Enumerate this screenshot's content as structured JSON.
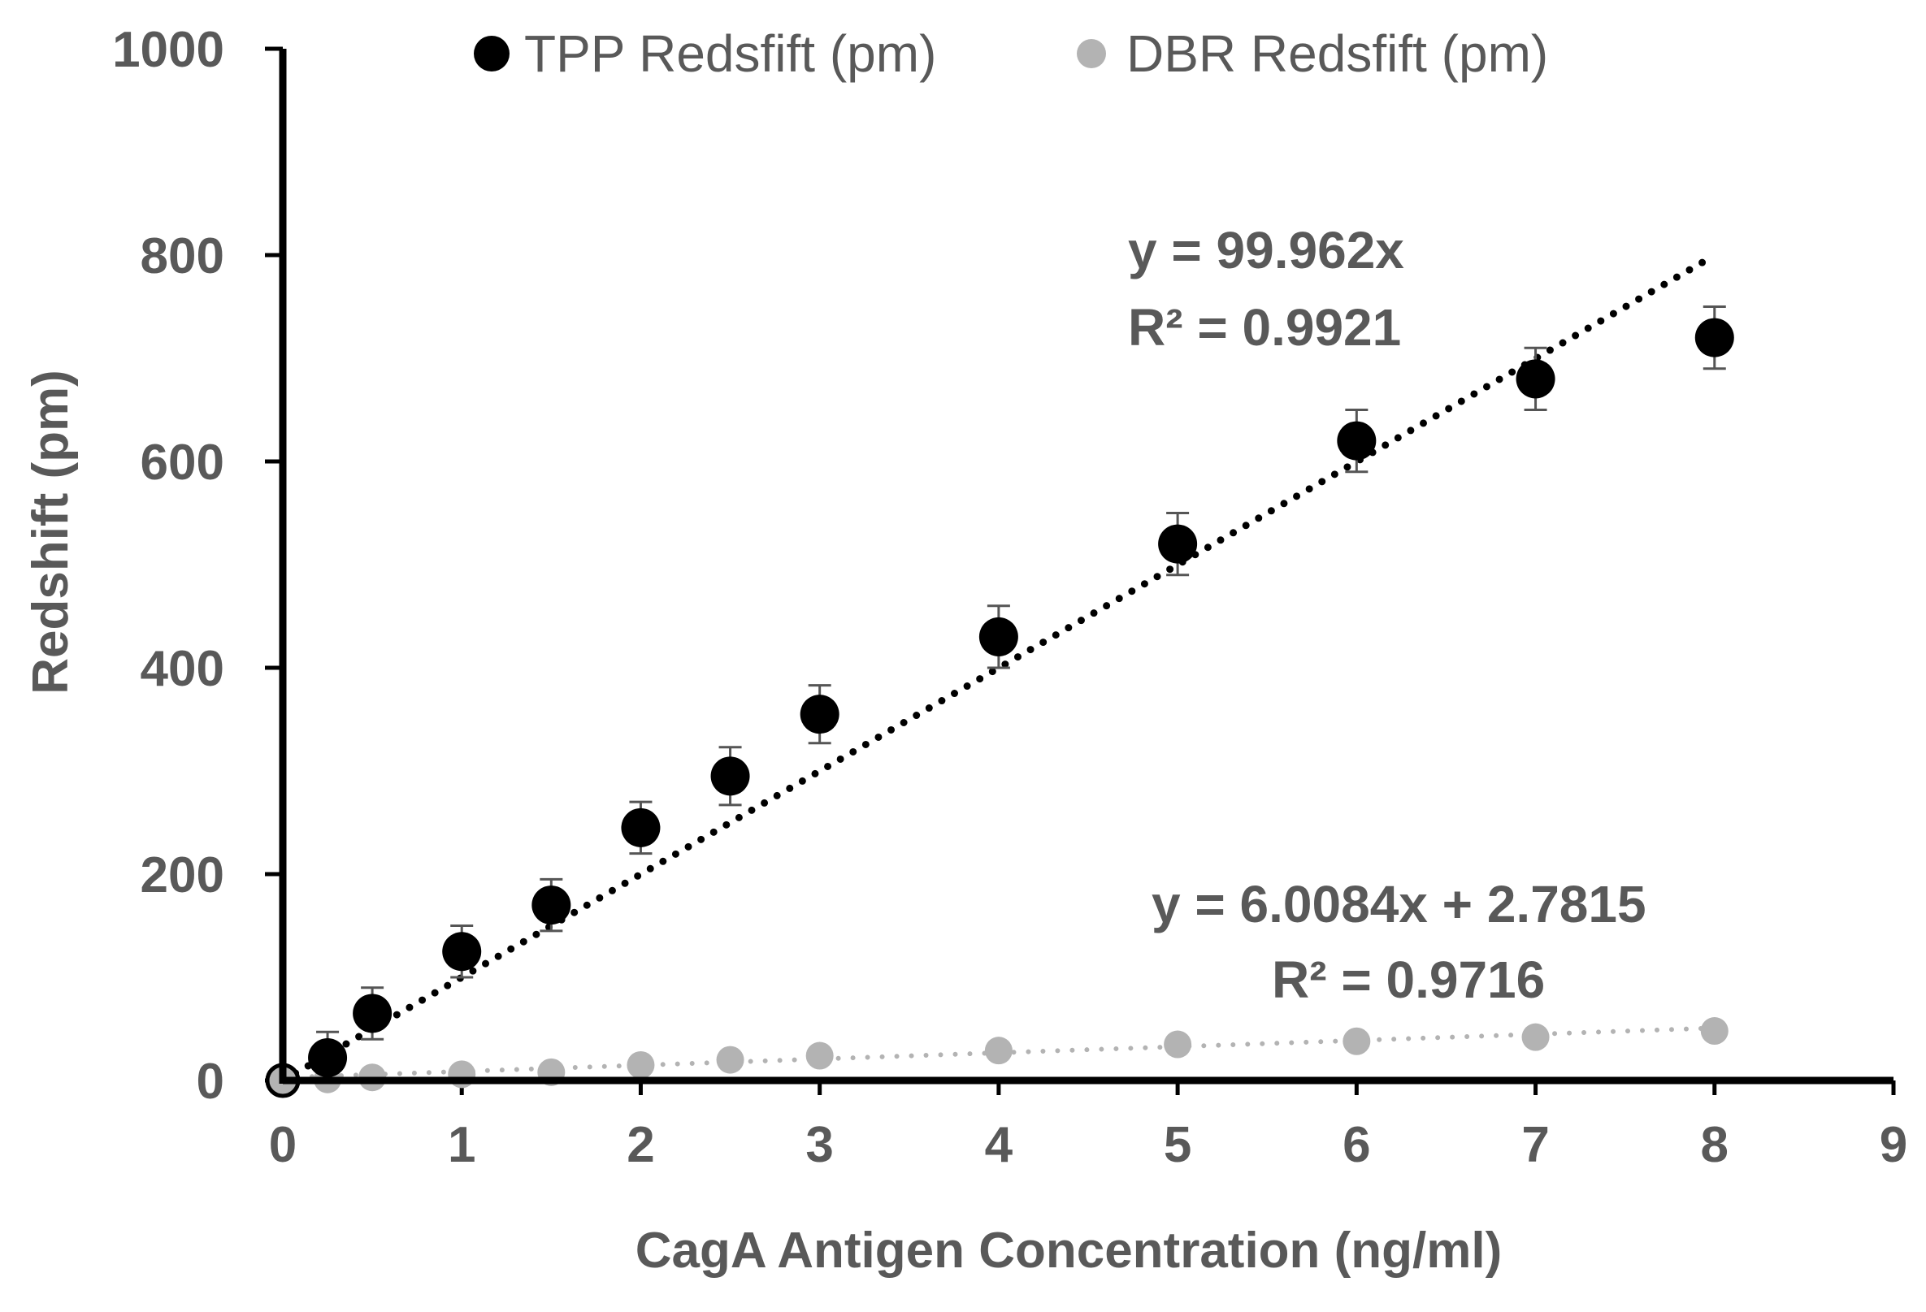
{
  "chart_data": {
    "type": "scatter",
    "title": "",
    "xlabel": "CagA Antigen Concentration (ng/ml)",
    "ylabel": "Redshift (pm)",
    "xlim": [
      0,
      9
    ],
    "ylim": [
      0,
      1000
    ],
    "xticks": [
      "0",
      "1",
      "2",
      "3",
      "4",
      "5",
      "6",
      "7",
      "8",
      "9"
    ],
    "yticks": [
      "0",
      "200",
      "400",
      "600",
      "800",
      "1000"
    ],
    "grid": false,
    "legend_position": "top",
    "colors": {
      "tpp": "#000000",
      "dbr": "#b3b3b3",
      "text": "#595959",
      "axis": "#000000",
      "errorbar": "#555555"
    },
    "series": [
      {
        "name": "TPP Redsfift (pm)",
        "x": [
          0,
          0.25,
          0.5,
          1,
          1.5,
          2,
          2.5,
          3,
          4,
          5,
          6,
          7,
          8
        ],
        "y": [
          0,
          22,
          65,
          125,
          170,
          245,
          295,
          355,
          430,
          520,
          620,
          680,
          720
        ],
        "error": [
          0,
          25,
          25,
          25,
          25,
          25,
          28,
          28,
          30,
          30,
          30,
          30,
          30
        ],
        "trendline": {
          "slope": 99.962,
          "intercept": 0,
          "x_range": [
            0,
            7.95
          ]
        },
        "equation": "y = 99.962x",
        "r_squared": "R² = 0.9921"
      },
      {
        "name": "DBR Redsfift (pm)",
        "x": [
          0,
          0.25,
          0.5,
          1,
          1.5,
          2,
          2.5,
          3,
          4,
          5,
          6,
          7,
          8
        ],
        "y": [
          0,
          1,
          3,
          6,
          8,
          15,
          20,
          24,
          29,
          35,
          38,
          42,
          48
        ],
        "trendline": {
          "slope": 6.0084,
          "intercept": 2.7815,
          "x_range": [
            0,
            8
          ]
        },
        "equation": "y = 6.0084x + 2.7815",
        "r_squared": "R² = 0.9716"
      }
    ]
  }
}
